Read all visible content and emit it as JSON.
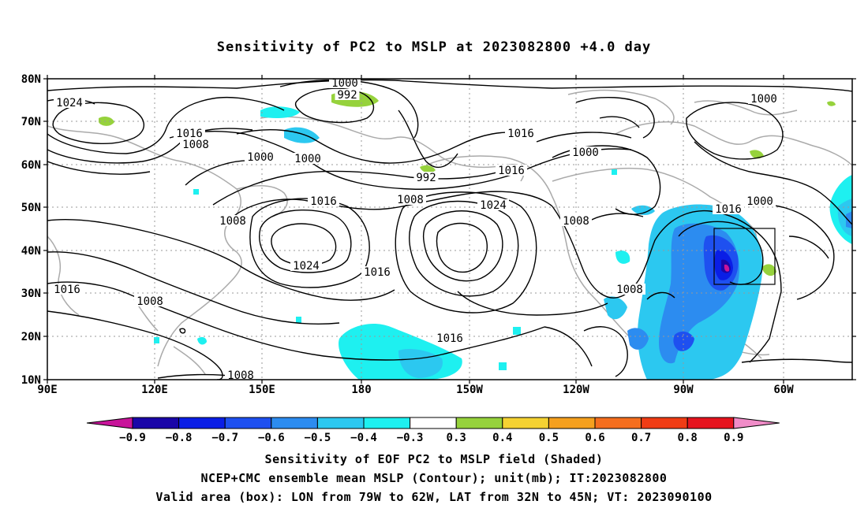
{
  "title": "Sensitivity of PC2 to MSLP at 2023082800 +4.0 day",
  "map": {
    "lat_labels": [
      "80N",
      "70N",
      "60N",
      "50N",
      "40N",
      "30N",
      "20N",
      "10N"
    ],
    "lon_labels": [
      "90E",
      "120E",
      "150E",
      "180",
      "150W",
      "120W",
      "90W",
      "60W"
    ],
    "contour_labels": [
      {
        "text": "1000"
      },
      {
        "text": "992"
      },
      {
        "text": "1024"
      },
      {
        "text": "1016"
      },
      {
        "text": "1008"
      },
      {
        "text": "1000"
      },
      {
        "text": "1000"
      },
      {
        "text": "992"
      },
      {
        "text": "1016"
      },
      {
        "text": "1008"
      },
      {
        "text": "1000"
      },
      {
        "text": "1000"
      },
      {
        "text": "1000"
      },
      {
        "text": "1016"
      },
      {
        "text": "1024"
      },
      {
        "text": "1008"
      },
      {
        "text": "1016"
      },
      {
        "text": "1008"
      },
      {
        "text": "1024"
      },
      {
        "text": "1016"
      },
      {
        "text": "1016"
      },
      {
        "text": "1008"
      },
      {
        "text": "1016"
      },
      {
        "text": "1016"
      },
      {
        "text": "1008"
      },
      {
        "text": "1008"
      }
    ],
    "valid_box": {
      "lon_from": "79W",
      "lon_to": "62W",
      "lat_from": "32N",
      "lat_to": "45N"
    }
  },
  "colorbar": {
    "labels": [
      "-0.9",
      "-0.8",
      "-0.7",
      "-0.6",
      "-0.5",
      "-0.4",
      "-0.3",
      "0.3",
      "0.4",
      "0.5",
      "0.6",
      "0.7",
      "0.8",
      "0.9"
    ],
    "colors": [
      "#1a06a8",
      "#0a1ee6",
      "#1e50f0",
      "#2c8cf0",
      "#2cc8f0",
      "#1ef0f0",
      "#ffffff",
      "#96d23c",
      "#f5d232",
      "#f5a01e",
      "#f56e1e",
      "#f03c14",
      "#e6141e"
    ],
    "end_low": "#c8149a",
    "end_high": "#f08cc8"
  },
  "footer": {
    "line1": "Sensitivity of EOF PC2 to MSLP field (Shaded)",
    "line2": "NCEP+CMC ensemble mean MSLP (Contour); unit(mb); IT:2023082800",
    "line3": "Valid area (box): LON from 79W to 62W, LAT from 32N to 45N; VT: 2023090100"
  }
}
